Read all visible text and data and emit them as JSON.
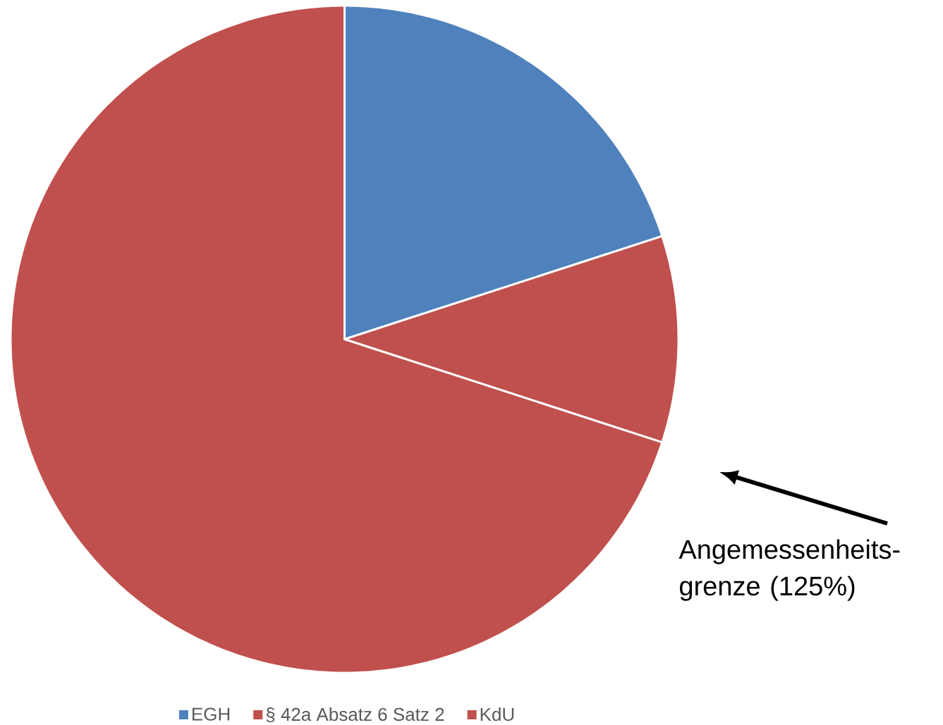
{
  "chart_data": {
    "type": "pie",
    "categories": [
      "EGH",
      "§ 42a Absatz 6 Satz 2",
      "KdU"
    ],
    "values": [
      20,
      10,
      70
    ],
    "colors": [
      "#4f81bd",
      "#c0504d",
      "#c0504d"
    ],
    "legend": "bottom",
    "annotations": [
      "Angemessenheits-grenze (125%)"
    ]
  }
}
